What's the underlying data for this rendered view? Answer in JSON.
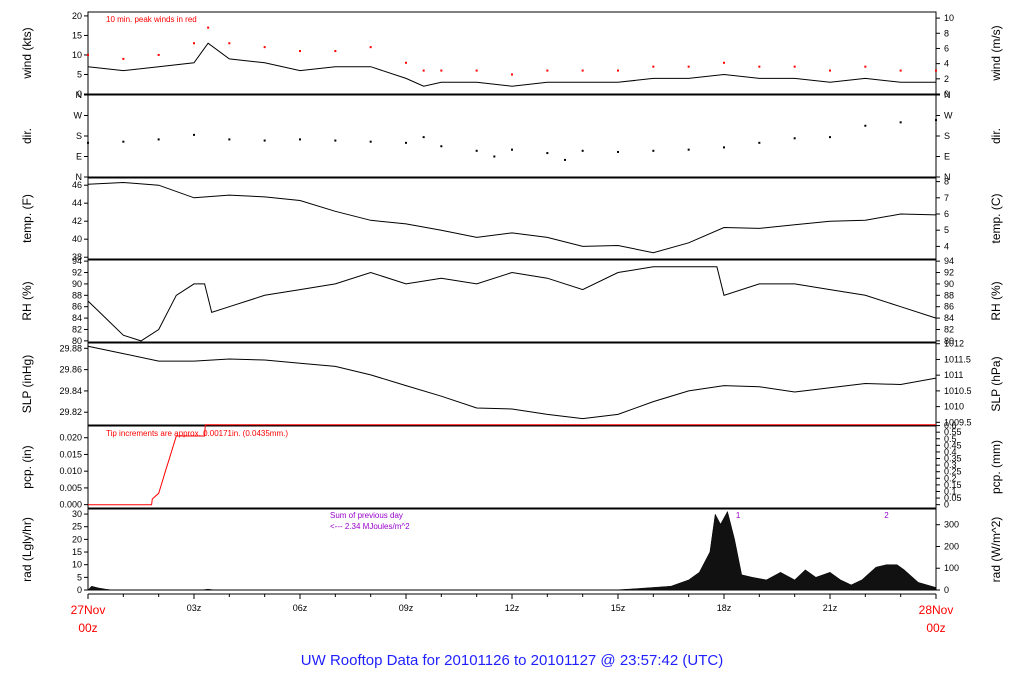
{
  "title": "UW Rooftop Data for 20101126  to  20101127 @ 23:57:42  (UTC)",
  "colors": {
    "title": "#1f1fff",
    "peak": "#ff0000",
    "pcp": "#ff0000",
    "annot_purple": "#9900cc",
    "day_label": "#ff0000"
  },
  "x_axis": {
    "ticks": [
      {
        "h": 3,
        "label": "03z"
      },
      {
        "h": 6,
        "label": "06z"
      },
      {
        "h": 9,
        "label": "09z"
      },
      {
        "h": 12,
        "label": "12z"
      },
      {
        "h": 15,
        "label": "15z"
      },
      {
        "h": 18,
        "label": "18z"
      },
      {
        "h": 21,
        "label": "21z"
      }
    ],
    "start_date": "27Nov",
    "start_time": "00z",
    "end_date": "28Nov",
    "end_time": "00z"
  },
  "chart_data": [
    {
      "panel": "wind",
      "type": "line",
      "ylabel": "wind (kts)",
      "ylabel_right": "wind (m/s)",
      "ylim": [
        0,
        21
      ],
      "yticks": [
        0,
        5,
        10,
        15,
        20
      ],
      "right_ticks": [
        0,
        2,
        4,
        6,
        8,
        10
      ],
      "right_factor": 0.5144,
      "annotation": "10 min. peak winds in red",
      "series": [
        {
          "role": "speed",
          "x": [
            0,
            1,
            2,
            3,
            3.4,
            4,
            5,
            6,
            7,
            8,
            9,
            9.5,
            10,
            11,
            12,
            13,
            14,
            15,
            16,
            17,
            18,
            19,
            20,
            21,
            22,
            23,
            24
          ],
          "y": [
            7,
            6,
            7,
            8,
            13,
            9,
            8,
            6,
            7,
            7,
            4,
            2,
            3,
            3,
            2,
            3,
            3,
            3,
            4,
            4,
            5,
            4,
            4,
            3,
            4,
            3,
            3
          ]
        },
        {
          "role": "peak",
          "x": [
            0,
            1,
            2,
            3,
            3.4,
            4,
            5,
            6,
            7,
            8,
            9,
            9.5,
            10,
            11,
            12,
            13,
            14,
            15,
            16,
            17,
            18,
            19,
            20,
            21,
            22,
            23,
            24
          ],
          "y": [
            10,
            9,
            10,
            13,
            17,
            13,
            12,
            11,
            11,
            12,
            8,
            6,
            6,
            6,
            5,
            6,
            6,
            6,
            7,
            7,
            8,
            7,
            7,
            6,
            7,
            6,
            6
          ]
        }
      ]
    },
    {
      "panel": "dir",
      "type": "scatter",
      "ylabel": "dir.",
      "ylabel_right": "dir.",
      "ylim": [
        0,
        360
      ],
      "ytick_values": [
        0,
        90,
        180,
        270,
        360
      ],
      "ytick_labels": [
        "N",
        "E",
        "S",
        "W",
        "N"
      ],
      "x": [
        0,
        1,
        2,
        3,
        4,
        5,
        6,
        7,
        8,
        9,
        9.5,
        10,
        11,
        11.5,
        12,
        13,
        13.5,
        14,
        15,
        16,
        17,
        18,
        19,
        20,
        21,
        22,
        23,
        24
      ],
      "y": [
        150,
        155,
        165,
        185,
        165,
        160,
        165,
        160,
        155,
        150,
        175,
        135,
        115,
        90,
        120,
        105,
        75,
        115,
        110,
        115,
        120,
        130,
        150,
        170,
        175,
        225,
        240,
        250
      ]
    },
    {
      "panel": "temp",
      "type": "line",
      "ylabel": "temp. (F)",
      "ylabel_right": "temp. (C)",
      "ylim": [
        37.8,
        46.8
      ],
      "yticks": [
        38,
        40,
        42,
        44,
        46
      ],
      "right_ticks": [
        4,
        5,
        6,
        7,
        8
      ],
      "right_units": "C",
      "x": [
        0,
        1,
        2,
        3,
        4,
        5,
        6,
        7,
        8,
        9,
        10,
        11,
        12,
        13,
        14,
        15,
        16,
        17,
        18,
        19,
        20,
        21,
        22,
        23,
        24
      ],
      "y": [
        46.1,
        46.3,
        46.0,
        44.6,
        44.9,
        44.7,
        44.3,
        43.1,
        42.1,
        41.7,
        41.0,
        40.2,
        40.7,
        40.2,
        39.2,
        39.3,
        38.5,
        39.6,
        41.3,
        41.2,
        41.6,
        42.0,
        42.1,
        42.8,
        42.7
      ]
    },
    {
      "panel": "rh",
      "type": "line",
      "ylabel": "RH (%)",
      "ylabel_right": "RH (%)",
      "ylim": [
        79.8,
        94.2
      ],
      "yticks": [
        80,
        82,
        84,
        86,
        88,
        90,
        92,
        94
      ],
      "x": [
        0,
        0.5,
        1,
        1.5,
        2,
        2.5,
        3,
        3.3,
        3.5,
        4,
        5,
        6,
        7,
        8,
        9,
        10,
        11,
        12,
        13,
        14,
        15,
        16,
        17,
        17.8,
        18,
        19,
        20,
        21,
        22,
        23,
        24
      ],
      "y": [
        87,
        84,
        81,
        80,
        82,
        88,
        90,
        90,
        85,
        86,
        88,
        89,
        90,
        92,
        90,
        91,
        90,
        92,
        91,
        89,
        92,
        93,
        93,
        93,
        88,
        90,
        90,
        89,
        88,
        86,
        84
      ]
    },
    {
      "panel": "slp",
      "type": "line",
      "ylabel": "SLP (inHg)",
      "ylabel_right": "SLP (hPa)",
      "ylim": [
        29.808,
        29.885
      ],
      "yticks": [
        29.82,
        29.84,
        29.86,
        29.88
      ],
      "right_ticks": [
        1009.5,
        1010,
        1010.5,
        1011,
        1011.5,
        1012
      ],
      "right_factor": 33.8639,
      "x": [
        0,
        1,
        2,
        3,
        4,
        5,
        6,
        7,
        8,
        9,
        10,
        11,
        12,
        13,
        14,
        15,
        16,
        17,
        18,
        19,
        20,
        21,
        22,
        23,
        24
      ],
      "y": [
        29.882,
        29.875,
        29.868,
        29.868,
        29.87,
        29.869,
        29.866,
        29.863,
        29.855,
        29.845,
        29.835,
        29.824,
        29.823,
        29.818,
        29.814,
        29.818,
        29.83,
        29.84,
        29.845,
        29.844,
        29.839,
        29.843,
        29.847,
        29.846,
        29.852
      ]
    },
    {
      "panel": "pcp",
      "type": "line",
      "ylabel": "pcp. (in)",
      "ylabel_right": "pcp. (mm)",
      "ylim": [
        -0.001,
        0.0235
      ],
      "yticks": [
        0,
        0.005,
        0.01,
        0.015,
        0.02
      ],
      "ytick_labels": [
        "0.000",
        "0.005",
        "0.010",
        "0.015",
        "0.020"
      ],
      "right_ticks": [
        0,
        0.05,
        0.1,
        0.15,
        0.2,
        0.25,
        0.3,
        0.35,
        0.4,
        0.45,
        0.5,
        0.55,
        0.6
      ],
      "right_factor": 25.4,
      "annotation": "Tip increments are approx. 0.00171in. (0.0435mm.)",
      "x": [
        0,
        1.8,
        1.82,
        2.0,
        2.1,
        2.2,
        2.3,
        2.4,
        2.5,
        3.3,
        3.32,
        24
      ],
      "y": [
        0,
        0,
        0.0017,
        0.0034,
        0.0068,
        0.0103,
        0.0137,
        0.0171,
        0.0205,
        0.0205,
        0.0239,
        0.0239
      ]
    },
    {
      "panel": "rad",
      "type": "area",
      "ylabel": "rad (Lgly/hr)",
      "ylabel_right": "rad (W/m^2)",
      "ylim": [
        0,
        32
      ],
      "yticks": [
        0,
        5,
        10,
        15,
        20,
        25,
        30
      ],
      "right_ticks": [
        0,
        100,
        200,
        300
      ],
      "right_factor": 11.63,
      "annotation": [
        "Sum of previous day",
        "<--- 2.34 MJoules/m^2"
      ],
      "markers": [
        {
          "x": 18.4,
          "label": "1"
        },
        {
          "x": 22.6,
          "label": "2"
        }
      ],
      "x": [
        0,
        0.1,
        0.3,
        0.5,
        0.7,
        3.2,
        3.4,
        3.6,
        14.9,
        15.5,
        16.5,
        17,
        17.3,
        17.6,
        17.75,
        17.9,
        18.1,
        18.3,
        18.5,
        18.8,
        19.2,
        19.6,
        20,
        20.3,
        20.6,
        21,
        21.3,
        21.6,
        21.9,
        22.3,
        22.6,
        22.9,
        23.1,
        23.5,
        24
      ],
      "y": [
        0,
        1.5,
        0.8,
        0.3,
        0,
        0,
        0.3,
        0,
        0,
        0.5,
        1.5,
        4,
        7,
        15,
        30,
        26,
        31,
        20,
        6,
        5,
        4,
        7,
        4,
        8,
        5,
        7,
        4,
        2,
        4,
        9,
        10,
        10,
        8,
        3,
        1
      ]
    }
  ]
}
